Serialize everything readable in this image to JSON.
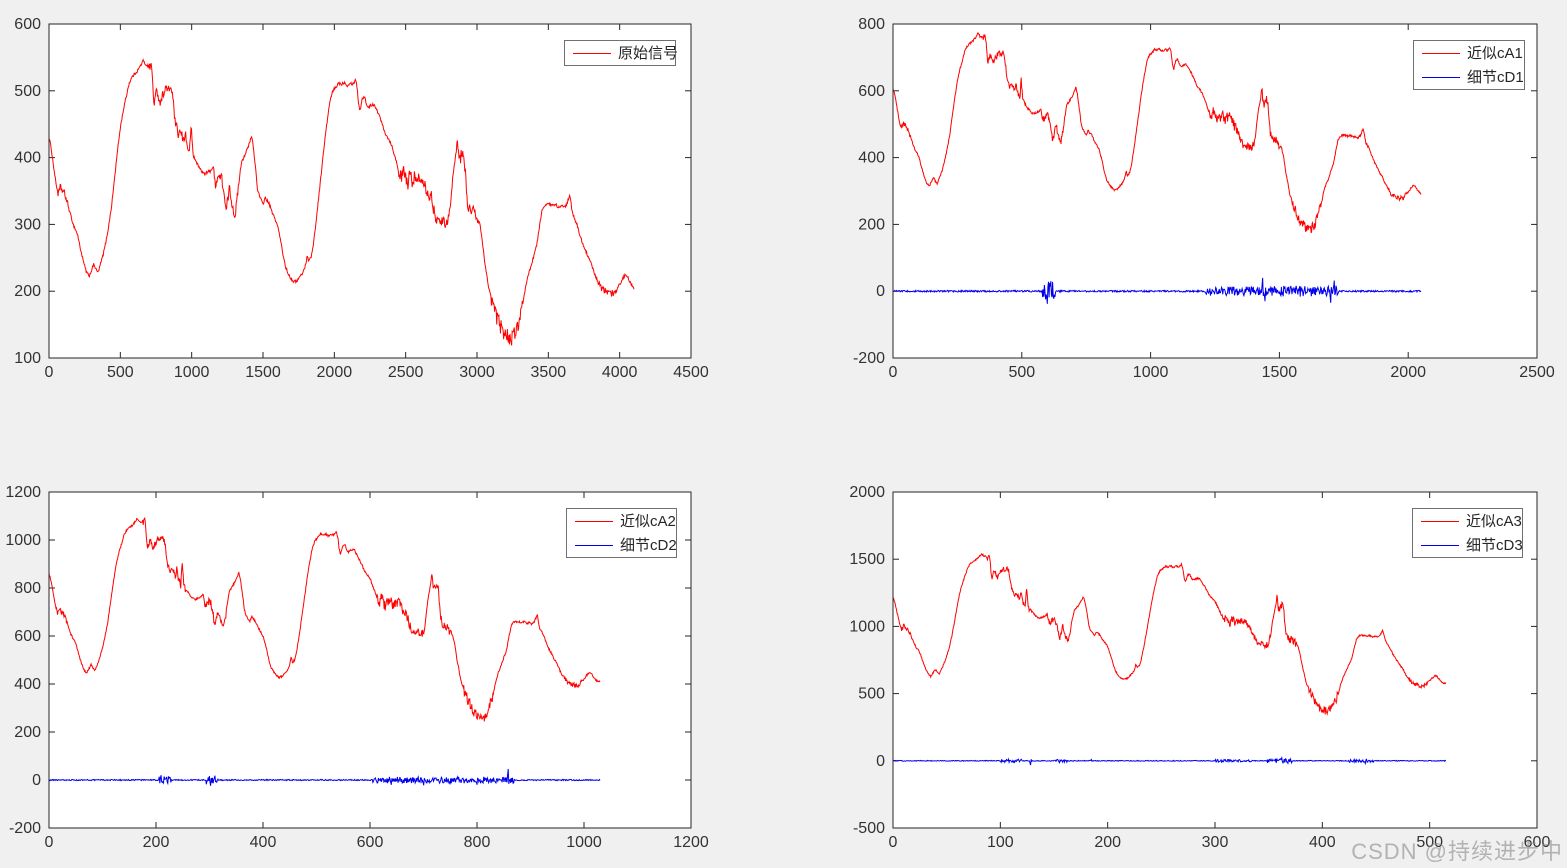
{
  "watermark": {
    "text": "CSDN @持续进步中"
  },
  "colors": {
    "background": "#f0f0f0",
    "plot_background": "#ffffff",
    "axis": "#262626",
    "tick_label": "#333333",
    "signal_red": "#ff0000",
    "detail_blue": "#0000ee",
    "legend_border": "#707070",
    "watermark_gray": "#8c8c8c"
  },
  "base_signal": {
    "description": "Keypoints of the original noisy signal (top-left). Approximation series cA1/cA2/cA3 are this shape with x divided by x_div and y multiplied by y_mul.",
    "base_noise": 2.2,
    "rough_ranges": [
      [
        55,
        135,
        3
      ],
      [
        700,
        900,
        4
      ],
      [
        930,
        1020,
        5
      ],
      [
        1150,
        1330,
        5
      ],
      [
        2450,
        2720,
        8
      ],
      [
        2740,
        2810,
        6
      ],
      [
        2860,
        3010,
        7
      ],
      [
        3100,
        3320,
        9
      ],
      [
        3850,
        3990,
        3
      ]
    ],
    "points": [
      [
        0,
        430
      ],
      [
        15,
        415
      ],
      [
        30,
        390
      ],
      [
        50,
        360
      ],
      [
        65,
        345
      ],
      [
        80,
        356
      ],
      [
        95,
        350
      ],
      [
        110,
        346
      ],
      [
        130,
        331
      ],
      [
        150,
        315
      ],
      [
        170,
        300
      ],
      [
        200,
        285
      ],
      [
        220,
        264
      ],
      [
        240,
        245
      ],
      [
        260,
        230
      ],
      [
        280,
        222
      ],
      [
        300,
        232
      ],
      [
        315,
        241
      ],
      [
        330,
        232
      ],
      [
        345,
        228
      ],
      [
        360,
        240
      ],
      [
        380,
        255
      ],
      [
        400,
        275
      ],
      [
        420,
        300
      ],
      [
        440,
        330
      ],
      [
        460,
        370
      ],
      [
        480,
        410
      ],
      [
        500,
        445
      ],
      [
        520,
        470
      ],
      [
        540,
        490
      ],
      [
        560,
        510
      ],
      [
        580,
        520
      ],
      [
        600,
        525
      ],
      [
        620,
        530
      ],
      [
        640,
        537
      ],
      [
        660,
        545
      ],
      [
        675,
        540
      ],
      [
        690,
        538
      ],
      [
        705,
        535
      ],
      [
        715,
        541
      ],
      [
        725,
        520
      ],
      [
        735,
        480
      ],
      [
        745,
        490
      ],
      [
        755,
        500
      ],
      [
        765,
        495
      ],
      [
        775,
        481
      ],
      [
        790,
        490
      ],
      [
        805,
        498
      ],
      [
        820,
        505
      ],
      [
        835,
        500
      ],
      [
        850,
        505
      ],
      [
        862,
        500
      ],
      [
        875,
        475
      ],
      [
        885,
        450
      ],
      [
        895,
        446
      ],
      [
        905,
        430
      ],
      [
        915,
        441
      ],
      [
        925,
        436
      ],
      [
        935,
        430
      ],
      [
        945,
        425
      ],
      [
        955,
        440
      ],
      [
        965,
        420
      ],
      [
        975,
        415
      ],
      [
        985,
        405
      ],
      [
        995,
        450
      ],
      [
        1005,
        415
      ],
      [
        1015,
        400
      ],
      [
        1030,
        395
      ],
      [
        1050,
        386
      ],
      [
        1070,
        380
      ],
      [
        1090,
        375
      ],
      [
        1110,
        378
      ],
      [
        1130,
        380
      ],
      [
        1150,
        386
      ],
      [
        1165,
        360
      ],
      [
        1180,
        370
      ],
      [
        1195,
        372
      ],
      [
        1210,
        370
      ],
      [
        1225,
        350
      ],
      [
        1240,
        318
      ],
      [
        1255,
        340
      ],
      [
        1265,
        355
      ],
      [
        1275,
        340
      ],
      [
        1285,
        330
      ],
      [
        1295,
        318
      ],
      [
        1305,
        315
      ],
      [
        1320,
        340
      ],
      [
        1335,
        370
      ],
      [
        1350,
        395
      ],
      [
        1365,
        400
      ],
      [
        1380,
        408
      ],
      [
        1395,
        415
      ],
      [
        1410,
        425
      ],
      [
        1420,
        432
      ],
      [
        1430,
        420
      ],
      [
        1440,
        400
      ],
      [
        1450,
        380
      ],
      [
        1460,
        355
      ],
      [
        1470,
        346
      ],
      [
        1480,
        340
      ],
      [
        1490,
        335
      ],
      [
        1500,
        330
      ],
      [
        1515,
        340
      ],
      [
        1530,
        335
      ],
      [
        1545,
        330
      ],
      [
        1560,
        320
      ],
      [
        1580,
        310
      ],
      [
        1600,
        300
      ],
      [
        1620,
        280
      ],
      [
        1640,
        255
      ],
      [
        1660,
        235
      ],
      [
        1680,
        225
      ],
      [
        1700,
        218
      ],
      [
        1720,
        214
      ],
      [
        1740,
        216
      ],
      [
        1760,
        222
      ],
      [
        1780,
        228
      ],
      [
        1800,
        240
      ],
      [
        1810,
        255
      ],
      [
        1820,
        245
      ],
      [
        1835,
        250
      ],
      [
        1850,
        265
      ],
      [
        1870,
        300
      ],
      [
        1890,
        340
      ],
      [
        1910,
        380
      ],
      [
        1930,
        420
      ],
      [
        1950,
        455
      ],
      [
        1970,
        485
      ],
      [
        1990,
        500
      ],
      [
        2010,
        505
      ],
      [
        2030,
        512
      ],
      [
        2050,
        510
      ],
      [
        2070,
        513
      ],
      [
        2090,
        508
      ],
      [
        2110,
        512
      ],
      [
        2130,
        510
      ],
      [
        2150,
        517
      ],
      [
        2160,
        505
      ],
      [
        2170,
        480
      ],
      [
        2180,
        470
      ],
      [
        2195,
        488
      ],
      [
        2210,
        492
      ],
      [
        2225,
        480
      ],
      [
        2240,
        475
      ],
      [
        2255,
        478
      ],
      [
        2270,
        480
      ],
      [
        2285,
        478
      ],
      [
        2300,
        470
      ],
      [
        2320,
        460
      ],
      [
        2340,
        448
      ],
      [
        2360,
        435
      ],
      [
        2380,
        428
      ],
      [
        2400,
        420
      ],
      [
        2420,
        405
      ],
      [
        2440,
        390
      ],
      [
        2455,
        375
      ],
      [
        2470,
        368
      ],
      [
        2485,
        380
      ],
      [
        2500,
        370
      ],
      [
        2515,
        360
      ],
      [
        2530,
        375
      ],
      [
        2545,
        365
      ],
      [
        2560,
        372
      ],
      [
        2575,
        362
      ],
      [
        2590,
        370
      ],
      [
        2605,
        368
      ],
      [
        2620,
        372
      ],
      [
        2635,
        360
      ],
      [
        2650,
        350
      ],
      [
        2665,
        345
      ],
      [
        2680,
        340
      ],
      [
        2700,
        320
      ],
      [
        2720,
        310
      ],
      [
        2740,
        305
      ],
      [
        2760,
        308
      ],
      [
        2780,
        302
      ],
      [
        2800,
        310
      ],
      [
        2815,
        330
      ],
      [
        2830,
        370
      ],
      [
        2845,
        395
      ],
      [
        2855,
        410
      ],
      [
        2862,
        435
      ],
      [
        2870,
        405
      ],
      [
        2880,
        395
      ],
      [
        2890,
        405
      ],
      [
        2900,
        410
      ],
      [
        2910,
        400
      ],
      [
        2920,
        370
      ],
      [
        2930,
        335
      ],
      [
        2945,
        325
      ],
      [
        2960,
        318
      ],
      [
        2975,
        322
      ],
      [
        2990,
        312
      ],
      [
        3005,
        308
      ],
      [
        3020,
        300
      ],
      [
        3035,
        280
      ],
      [
        3050,
        250
      ],
      [
        3065,
        230
      ],
      [
        3080,
        205
      ],
      [
        3100,
        190
      ],
      [
        3120,
        175
      ],
      [
        3140,
        160
      ],
      [
        3160,
        150
      ],
      [
        3180,
        140
      ],
      [
        3200,
        138
      ],
      [
        3220,
        132
      ],
      [
        3240,
        128
      ],
      [
        3260,
        135
      ],
      [
        3280,
        145
      ],
      [
        3300,
        160
      ],
      [
        3320,
        178
      ],
      [
        3340,
        205
      ],
      [
        3360,
        225
      ],
      [
        3380,
        238
      ],
      [
        3400,
        255
      ],
      [
        3420,
        270
      ],
      [
        3440,
        300
      ],
      [
        3455,
        320
      ],
      [
        3470,
        328
      ],
      [
        3490,
        330
      ],
      [
        3510,
        330
      ],
      [
        3530,
        328
      ],
      [
        3550,
        330
      ],
      [
        3570,
        326
      ],
      [
        3590,
        328
      ],
      [
        3610,
        325
      ],
      [
        3630,
        330
      ],
      [
        3650,
        345
      ],
      [
        3660,
        330
      ],
      [
        3670,
        315
      ],
      [
        3685,
        308
      ],
      [
        3700,
        300
      ],
      [
        3720,
        285
      ],
      [
        3740,
        272
      ],
      [
        3760,
        262
      ],
      [
        3780,
        250
      ],
      [
        3800,
        242
      ],
      [
        3820,
        228
      ],
      [
        3840,
        218
      ],
      [
        3860,
        210
      ],
      [
        3880,
        202
      ],
      [
        3900,
        200
      ],
      [
        3920,
        198
      ],
      [
        3940,
        196
      ],
      [
        3960,
        198
      ],
      [
        3980,
        205
      ],
      [
        4000,
        210
      ],
      [
        4020,
        218
      ],
      [
        4040,
        225
      ],
      [
        4055,
        222
      ],
      [
        4070,
        215
      ],
      [
        4085,
        210
      ],
      [
        4100,
        205
      ]
    ]
  },
  "chart_data": [
    {
      "type": "line",
      "title": "",
      "xlabel": "",
      "ylabel": "",
      "xlim": [
        0,
        4500
      ],
      "ylim": [
        100,
        600
      ],
      "xticks": [
        0,
        500,
        1000,
        1500,
        2000,
        2500,
        3000,
        3500,
        4000,
        4500
      ],
      "yticks": [
        100,
        200,
        300,
        400,
        500,
        600
      ],
      "grid": false,
      "legend_position": "top-right",
      "legend": [
        {
          "label": "原始信号",
          "color": "#ff0000"
        }
      ],
      "series": [
        {
          "name": "原始信号",
          "kind": "approximation",
          "color": "#ff0000",
          "x_end": 4100,
          "derived_from_base": {
            "x_div": 1,
            "y_mul": 1.0
          }
        }
      ]
    },
    {
      "type": "line",
      "title": "",
      "xlabel": "",
      "ylabel": "",
      "xlim": [
        0,
        2500
      ],
      "ylim": [
        -200,
        800
      ],
      "xticks": [
        0,
        500,
        1000,
        1500,
        2000,
        2500
      ],
      "yticks": [
        -200,
        0,
        200,
        400,
        600,
        800
      ],
      "grid": false,
      "legend_position": "top-right",
      "legend": [
        {
          "label": "近似cA1",
          "color": "#ff0000"
        },
        {
          "label": "细节cD1",
          "color": "#0000ee"
        }
      ],
      "series": [
        {
          "name": "近似cA1",
          "kind": "approximation",
          "color": "#ff0000",
          "x_end": 2050,
          "derived_from_base": {
            "x_div": 2,
            "y_mul": 1.414
          }
        },
        {
          "name": "细节cD1",
          "kind": "detail-noise",
          "color": "#0000ee",
          "x_end": 2050,
          "baseline": 2.5,
          "bursts": [
            [
              580,
              632,
              26
            ],
            [
              1210,
              1480,
              11
            ],
            [
              1480,
              1730,
              14
            ]
          ],
          "spikes": [
            [
              600,
              -38
            ],
            [
              612,
              30
            ],
            [
              1434,
              40
            ],
            [
              1445,
              -30
            ],
            [
              1700,
              -35
            ],
            [
              1712,
              32
            ]
          ]
        }
      ]
    },
    {
      "type": "line",
      "title": "",
      "xlabel": "",
      "ylabel": "",
      "xlim": [
        0,
        1200
      ],
      "ylim": [
        -200,
        1200
      ],
      "xticks": [
        0,
        200,
        400,
        600,
        800,
        1000,
        1200
      ],
      "yticks": [
        -200,
        0,
        200,
        400,
        600,
        800,
        1000,
        1200
      ],
      "grid": false,
      "legend_position": "top-right",
      "legend": [
        {
          "label": "近似cA2",
          "color": "#ff0000"
        },
        {
          "label": "细节cD2",
          "color": "#0000ee"
        }
      ],
      "series": [
        {
          "name": "近似cA2",
          "kind": "approximation",
          "color": "#ff0000",
          "x_end": 1030,
          "derived_from_base": {
            "x_div": 4,
            "y_mul": 2.0
          }
        },
        {
          "name": "细节cD2",
          "kind": "detail-noise",
          "color": "#0000ee",
          "x_end": 1030,
          "baseline": 2.5,
          "bursts": [
            [
              205,
              228,
              13
            ],
            [
              293,
              316,
              16
            ],
            [
              605,
              870,
              11
            ]
          ],
          "spikes": [
            [
              210,
              20
            ],
            [
              302,
              -24
            ],
            [
              310,
              18
            ],
            [
              640,
              -20
            ],
            [
              700,
              -22
            ],
            [
              750,
              -18
            ],
            [
              800,
              -20
            ],
            [
              858,
              46
            ]
          ]
        }
      ]
    },
    {
      "type": "line",
      "title": "",
      "xlabel": "",
      "ylabel": "",
      "xlim": [
        0,
        600
      ],
      "ylim": [
        -500,
        2000
      ],
      "xticks": [
        0,
        100,
        200,
        300,
        400,
        500,
        600
      ],
      "yticks": [
        -500,
        0,
        500,
        1000,
        1500,
        2000
      ],
      "grid": false,
      "legend_position": "top-right",
      "legend": [
        {
          "label": "近似cA3",
          "color": "#ff0000"
        },
        {
          "label": "细节cD3",
          "color": "#0000ee"
        }
      ],
      "series": [
        {
          "name": "近似cA3",
          "kind": "approximation",
          "color": "#ff0000",
          "x_end": 515,
          "derived_from_base": {
            "x_div": 8,
            "y_mul": 2.828
          }
        },
        {
          "name": "细节cD3",
          "kind": "detail-noise",
          "color": "#0000ee",
          "x_end": 515,
          "baseline": 3,
          "bursts": [
            [
              100,
              120,
              9
            ],
            [
              150,
              162,
              8
            ],
            [
              300,
              335,
              7
            ],
            [
              348,
              372,
              13
            ],
            [
              425,
              448,
              9
            ]
          ],
          "spikes": [
            [
              128,
              -32
            ],
            [
              155,
              -14
            ],
            [
              185,
              10
            ],
            [
              362,
              22
            ],
            [
              368,
              -18
            ],
            [
              440,
              -20
            ]
          ]
        }
      ]
    }
  ]
}
